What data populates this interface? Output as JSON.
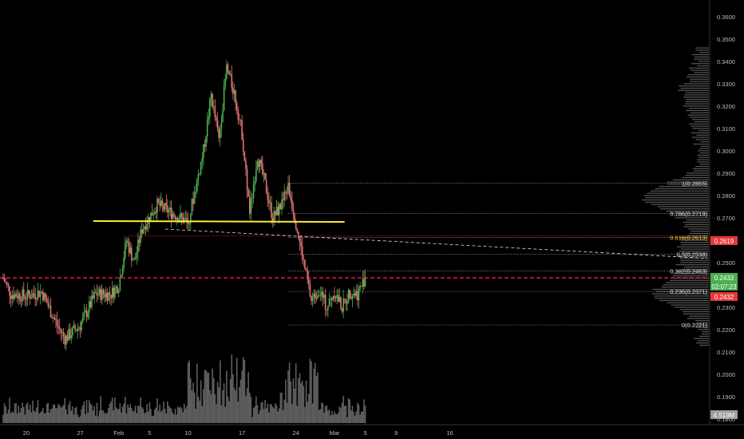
{
  "colors": {
    "background": "#000000",
    "up": "#26a69a",
    "down": "#ef5350",
    "up_candle": "#4caf50",
    "down_candle": "#e57373",
    "trendline": "#ffeb3b",
    "red_level": "#ff1744",
    "green_tag": "#4caf50",
    "fib_line": "#9e9e9e",
    "axis_text": "#bdbdbd",
    "volume_profile": "#9e9e9e"
  },
  "axis": {
    "x_labels": [
      "20",
      "27",
      "Feb",
      "5",
      "10",
      "17",
      "24",
      "Mar",
      "5",
      "9",
      "16"
    ],
    "y_labels": [
      "0.3600",
      "0.3500",
      "0.3400",
      "0.3300",
      "0.3200",
      "0.3100",
      "0.3000",
      "0.2900",
      "0.2800",
      "0.2700",
      "0.2600",
      "0.2500",
      "0.2400",
      "0.2300",
      "0.2200",
      "0.2100",
      "0.2000",
      "0.1900",
      "0.1800"
    ]
  },
  "price_tags": {
    "current": "0.2433",
    "countdown": "02:07:23",
    "red_level": "0.2432",
    "upper_red": "0.2619",
    "volume": "4.519M"
  },
  "fib_labels": [
    {
      "text": "1(0.2855)",
      "level": 0.2855
    },
    {
      "text": "0.786(0.2719)",
      "level": 0.2719
    },
    {
      "text": "0.618(0.2613)",
      "level": 0.2613
    },
    {
      "text": "0.5(0.2538)",
      "level": 0.2538
    },
    {
      "text": "0.382(0.2463)",
      "level": 0.2463
    },
    {
      "text": "0.236(0.2371)",
      "level": 0.2371
    },
    {
      "text": "0(0.2221)",
      "level": 0.2221
    }
  ],
  "chart_data": {
    "type": "candlestick",
    "title": "",
    "xlabel": "",
    "ylabel": "",
    "ylim": [
      0.18,
      0.365
    ],
    "x_ticks": [
      "20",
      "27",
      "Feb",
      "5",
      "10",
      "17",
      "24",
      "Mar",
      "5",
      "9",
      "16"
    ],
    "price_path": [
      {
        "date": "Jan 17",
        "price": 0.243
      },
      {
        "date": "Jan 18",
        "price": 0.236
      },
      {
        "date": "Jan 20",
        "price": 0.235
      },
      {
        "date": "Jan 22",
        "price": 0.237
      },
      {
        "date": "Jan 24",
        "price": 0.222
      },
      {
        "date": "Jan 25",
        "price": 0.216
      },
      {
        "date": "Jan 27",
        "price": 0.222
      },
      {
        "date": "Jan 29",
        "price": 0.236
      },
      {
        "date": "Jan 31",
        "price": 0.236
      },
      {
        "date": "Feb 1",
        "price": 0.24
      },
      {
        "date": "Feb 2",
        "price": 0.26
      },
      {
        "date": "Feb 3",
        "price": 0.25
      },
      {
        "date": "Feb 4",
        "price": 0.265
      },
      {
        "date": "Feb 6",
        "price": 0.276
      },
      {
        "date": "Feb 8",
        "price": 0.272
      },
      {
        "date": "Feb 10",
        "price": 0.268
      },
      {
        "date": "Feb 12",
        "price": 0.3
      },
      {
        "date": "Feb 13",
        "price": 0.325
      },
      {
        "date": "Feb 14",
        "price": 0.305
      },
      {
        "date": "Feb 15",
        "price": 0.337
      },
      {
        "date": "Feb 16",
        "price": 0.326
      },
      {
        "date": "Feb 17",
        "price": 0.308
      },
      {
        "date": "Feb 18",
        "price": 0.272
      },
      {
        "date": "Feb 19",
        "price": 0.298
      },
      {
        "date": "Feb 20",
        "price": 0.285
      },
      {
        "date": "Feb 21",
        "price": 0.27
      },
      {
        "date": "Feb 22",
        "price": 0.275
      },
      {
        "date": "Feb 23",
        "price": 0.284
      },
      {
        "date": "Feb 24",
        "price": 0.268
      },
      {
        "date": "Feb 25",
        "price": 0.25
      },
      {
        "date": "Feb 26",
        "price": 0.233
      },
      {
        "date": "Feb 27",
        "price": 0.238
      },
      {
        "date": "Feb 28",
        "price": 0.23
      },
      {
        "date": "Mar 1",
        "price": 0.237
      },
      {
        "date": "Mar 2",
        "price": 0.23
      },
      {
        "date": "Mar 3",
        "price": 0.237
      },
      {
        "date": "Mar 4",
        "price": 0.236
      },
      {
        "date": "Mar 5",
        "price": 0.2433
      }
    ],
    "trendline": {
      "start": {
        "date": "Feb 1",
        "price": 0.2686
      },
      "end": {
        "date": "Feb 27",
        "price": 0.2682
      }
    },
    "dashed_trendline": {
      "start": {
        "date": "Feb 6",
        "price": 0.265
      },
      "end": {
        "date": "Mar 13",
        "price": 0.2519
      }
    },
    "horizontal_levels": [
      {
        "price": 0.2432,
        "style": "dashed",
        "color": "red"
      },
      {
        "price": 0.2619,
        "style": "dotted",
        "color": "red"
      }
    ],
    "fibonacci": {
      "from": 0.2855,
      "to": 0.2221,
      "levels": [
        1,
        0.786,
        0.618,
        0.5,
        0.382,
        0.236,
        0
      ]
    },
    "last_volume": "4.519M"
  }
}
